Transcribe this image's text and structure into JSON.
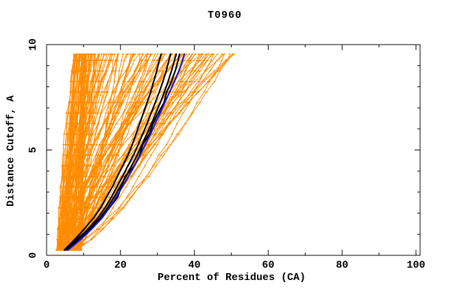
{
  "window": {
    "title": "T0960"
  },
  "colors": {
    "background": "#ffffff",
    "frame": "#000000",
    "text": "#000000",
    "ensemble_orange": "#ff8c00",
    "highlight_black": "#000000",
    "highlight_blue": "#1414dc"
  },
  "chart_data": {
    "type": "line",
    "title": "T0960",
    "xlabel": "Percent of Residues (CA)",
    "ylabel": "Distance Cutoff, A",
    "xlim": [
      0,
      101
    ],
    "ylim": [
      0,
      10
    ],
    "grid": false,
    "legend_position": "none",
    "x_tick_values": [
      0,
      20,
      40,
      60,
      80,
      100
    ],
    "x_tick_labels": [
      "0",
      "20",
      "40",
      "60",
      "80",
      "100"
    ],
    "x_minor_tick_step": 10,
    "y_tick_values": [
      0,
      5,
      10
    ],
    "y_tick_labels": [
      "0",
      "5",
      "10"
    ],
    "y_minor_tick_step": 1,
    "cutoffs": [
      0.25,
      0.75,
      1.25,
      1.75,
      2.25,
      2.75,
      3.25,
      3.75,
      4.25,
      4.75,
      5.25,
      5.75,
      6.25,
      6.75,
      7.25,
      7.75,
      8.25,
      8.75,
      9.25,
      9.55
    ],
    "series": [
      {
        "name": "model-black-1",
        "color": "#000000",
        "width": 2.2,
        "percents": [
          4.8,
          7.6,
          10.2,
          12.6,
          14.6,
          16.2,
          17.8,
          19.2,
          20.6,
          22.0,
          23.2,
          24.2,
          25.2,
          26.2,
          27.2,
          28.2,
          29.0,
          29.8,
          30.5,
          31.0
        ]
      },
      {
        "name": "model-black-2",
        "color": "#000000",
        "width": 2.2,
        "percents": [
          5.2,
          8.4,
          11.2,
          13.8,
          15.8,
          17.5,
          19.0,
          20.6,
          22.0,
          23.5,
          24.8,
          26.0,
          27.2,
          28.3,
          29.4,
          30.5,
          31.5,
          32.4,
          33.1,
          33.6
        ]
      },
      {
        "name": "model-black-3",
        "color": "#000000",
        "width": 2.2,
        "percents": [
          5.6,
          8.9,
          11.8,
          14.4,
          16.5,
          18.2,
          19.9,
          21.5,
          23.0,
          24.5,
          25.8,
          27.1,
          28.4,
          29.6,
          30.8,
          31.9,
          32.9,
          33.8,
          34.6,
          35.1
        ]
      },
      {
        "name": "model-black-4",
        "color": "#000000",
        "width": 2.2,
        "percents": [
          5.0,
          8.0,
          11.5,
          14.6,
          17.0,
          19.2,
          20.2,
          21.3,
          23.8,
          25.2,
          26.0,
          27.8,
          28.8,
          30.2,
          31.8,
          32.5,
          33.8,
          34.8,
          35.6,
          36.0
        ]
      },
      {
        "name": "model-blue",
        "color": "#1414dc",
        "width": 2.2,
        "percents": [
          5.8,
          9.2,
          12.2,
          14.9,
          17.0,
          18.8,
          20.5,
          22.2,
          23.8,
          25.3,
          26.7,
          28.1,
          29.4,
          30.7,
          32.0,
          33.3,
          34.6,
          35.8,
          36.8,
          37.3
        ]
      }
    ],
    "ensemble": {
      "name": "all-models-orange",
      "color": "#ff8c00",
      "count": 150,
      "seed": 1337,
      "line_width": 1,
      "dot_w": 2.4,
      "dot_h": 1.7,
      "start_min": 2.8,
      "start_max": 9.5,
      "start_power": 1.3,
      "end_min": 7.5,
      "end_max": 51,
      "end_power": 2.1,
      "gamma_min": 0.62,
      "gamma_max": 1.65,
      "jitter": 0.55
    }
  }
}
